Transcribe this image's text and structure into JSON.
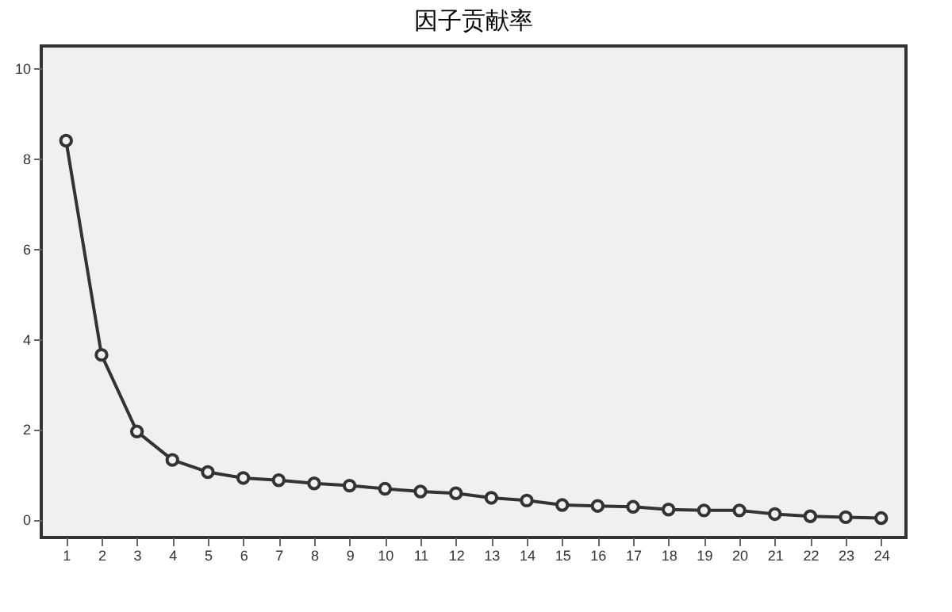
{
  "chart_data": {
    "type": "line",
    "title": "因子贡献率",
    "x": [
      1,
      2,
      3,
      4,
      5,
      6,
      7,
      8,
      9,
      10,
      11,
      12,
      13,
      14,
      15,
      16,
      17,
      18,
      19,
      20,
      21,
      22,
      23,
      24
    ],
    "series": [
      {
        "color": "#333333",
        "values": [
          8.4,
          3.65,
          1.95,
          1.32,
          1.05,
          0.92,
          0.87,
          0.8,
          0.75,
          0.68,
          0.62,
          0.58,
          0.48,
          0.42,
          0.32,
          0.3,
          0.28,
          0.22,
          0.2,
          0.2,
          0.12,
          0.07,
          0.05,
          0.03
        ]
      }
    ],
    "xlim": [
      0.3,
      24.7
    ],
    "xticks": [
      1,
      2,
      3,
      4,
      5,
      6,
      7,
      8,
      9,
      10,
      11,
      12,
      13,
      14,
      15,
      16,
      17,
      18,
      19,
      20,
      21,
      22,
      23,
      24
    ],
    "ylim": [
      -0.4,
      10.5
    ],
    "yticks": [
      0,
      2,
      4,
      6,
      8,
      10
    ],
    "marker": "circle",
    "line_style": "solid",
    "grid": false
  }
}
